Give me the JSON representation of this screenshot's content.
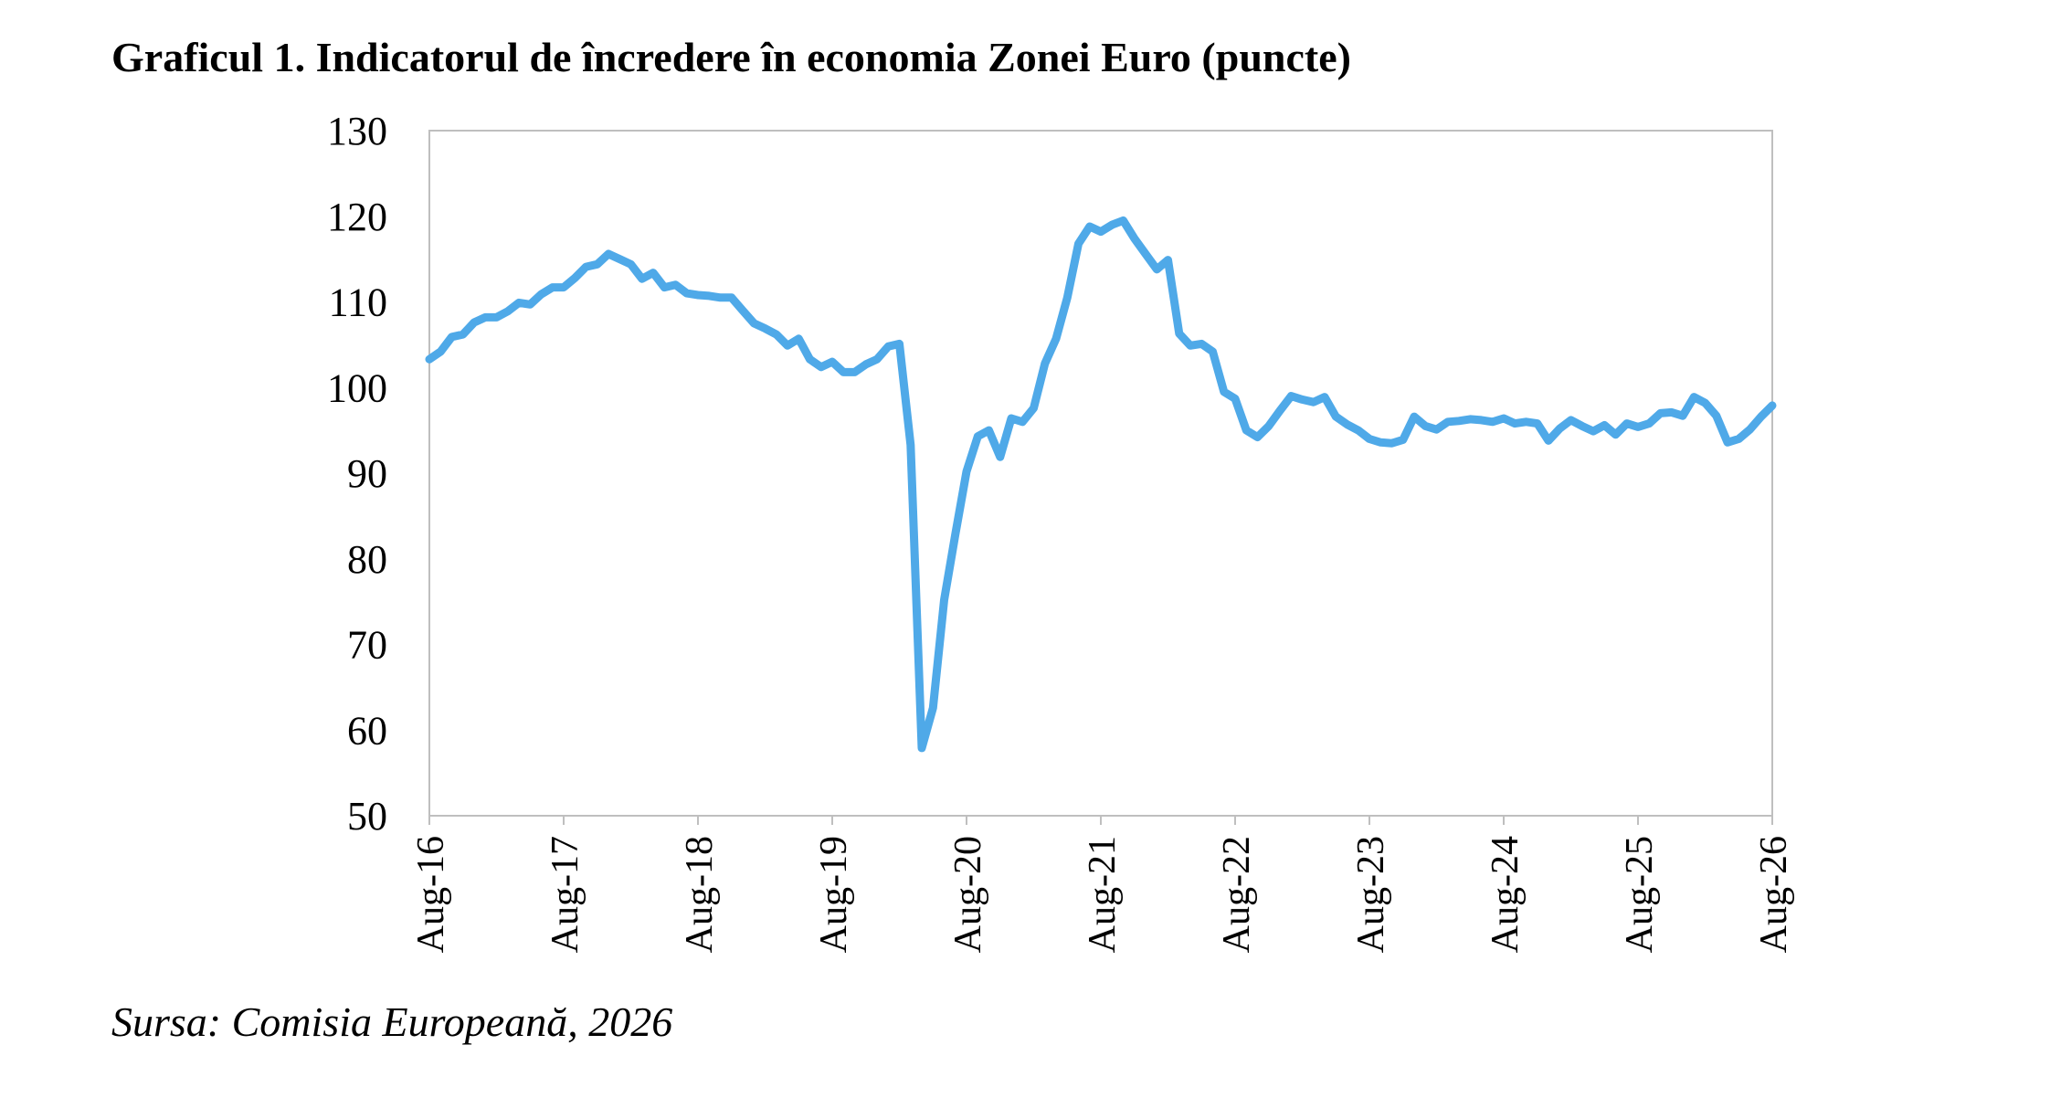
{
  "chart_data": {
    "type": "line",
    "title": "Graficul 1. Indicatorul de încredere în economia Zonei Euro (puncte)",
    "source": "Sursa: Comisia Europeană, 2026",
    "ylim": [
      50,
      130
    ],
    "yticks": [
      "130",
      "120",
      "110",
      "100",
      "90",
      "80",
      "70",
      "60",
      "50"
    ],
    "ytick_values": [
      130,
      120,
      110,
      100,
      90,
      80,
      70,
      60,
      50
    ],
    "xticks": [
      "Aug-16",
      "Aug-17",
      "Aug-18",
      "Aug-19",
      "Aug-20",
      "Aug-21",
      "Aug-22",
      "Aug-23",
      "Aug-24",
      "Aug-25",
      "Aug-26"
    ],
    "x_range": [
      "2016-08",
      "2026-08"
    ],
    "grid": false,
    "line_color": "#4FA9E8",
    "series": [
      {
        "values": [
          103.3,
          104.2,
          105.9,
          106.2,
          107.6,
          108.2,
          108.2,
          108.9,
          109.9,
          109.7,
          110.9,
          111.7,
          111.7,
          112.8,
          114.1,
          114.4,
          115.6,
          115.0,
          114.4,
          112.7,
          113.4,
          111.7,
          112.0,
          111.0,
          110.8,
          110.7,
          110.5,
          110.5,
          109.0,
          107.5,
          106.9,
          106.2,
          104.9,
          105.7,
          103.3,
          102.4,
          103.0,
          101.8,
          101.8,
          102.7,
          103.3,
          104.8,
          105.1,
          93.3,
          57.9,
          62.6,
          75.2,
          82.9,
          90.2,
          94.3,
          95.0,
          91.9,
          96.4,
          96.0,
          97.6,
          102.8,
          105.7,
          110.5,
          116.8,
          118.8,
          118.2,
          119.0,
          119.5,
          117.4,
          115.6,
          113.8,
          114.9,
          106.3,
          104.9,
          105.1,
          104.2,
          99.5,
          98.7,
          95.0,
          94.2,
          95.5,
          97.3,
          99.0,
          98.6,
          98.3,
          98.9,
          96.6,
          95.7,
          95.0,
          94.0,
          93.6,
          93.5,
          93.9,
          96.6,
          95.5,
          95.1,
          96.0,
          96.1,
          96.3,
          96.2,
          96.0,
          96.4,
          95.8,
          96.0,
          95.8,
          93.8,
          95.2,
          96.2,
          95.5,
          94.9,
          95.6,
          94.5,
          95.8,
          95.4,
          95.8,
          97.0,
          97.1,
          96.7,
          98.9,
          98.2,
          96.7,
          93.6,
          94.0,
          95.1,
          96.6,
          97.9
        ]
      }
    ]
  }
}
